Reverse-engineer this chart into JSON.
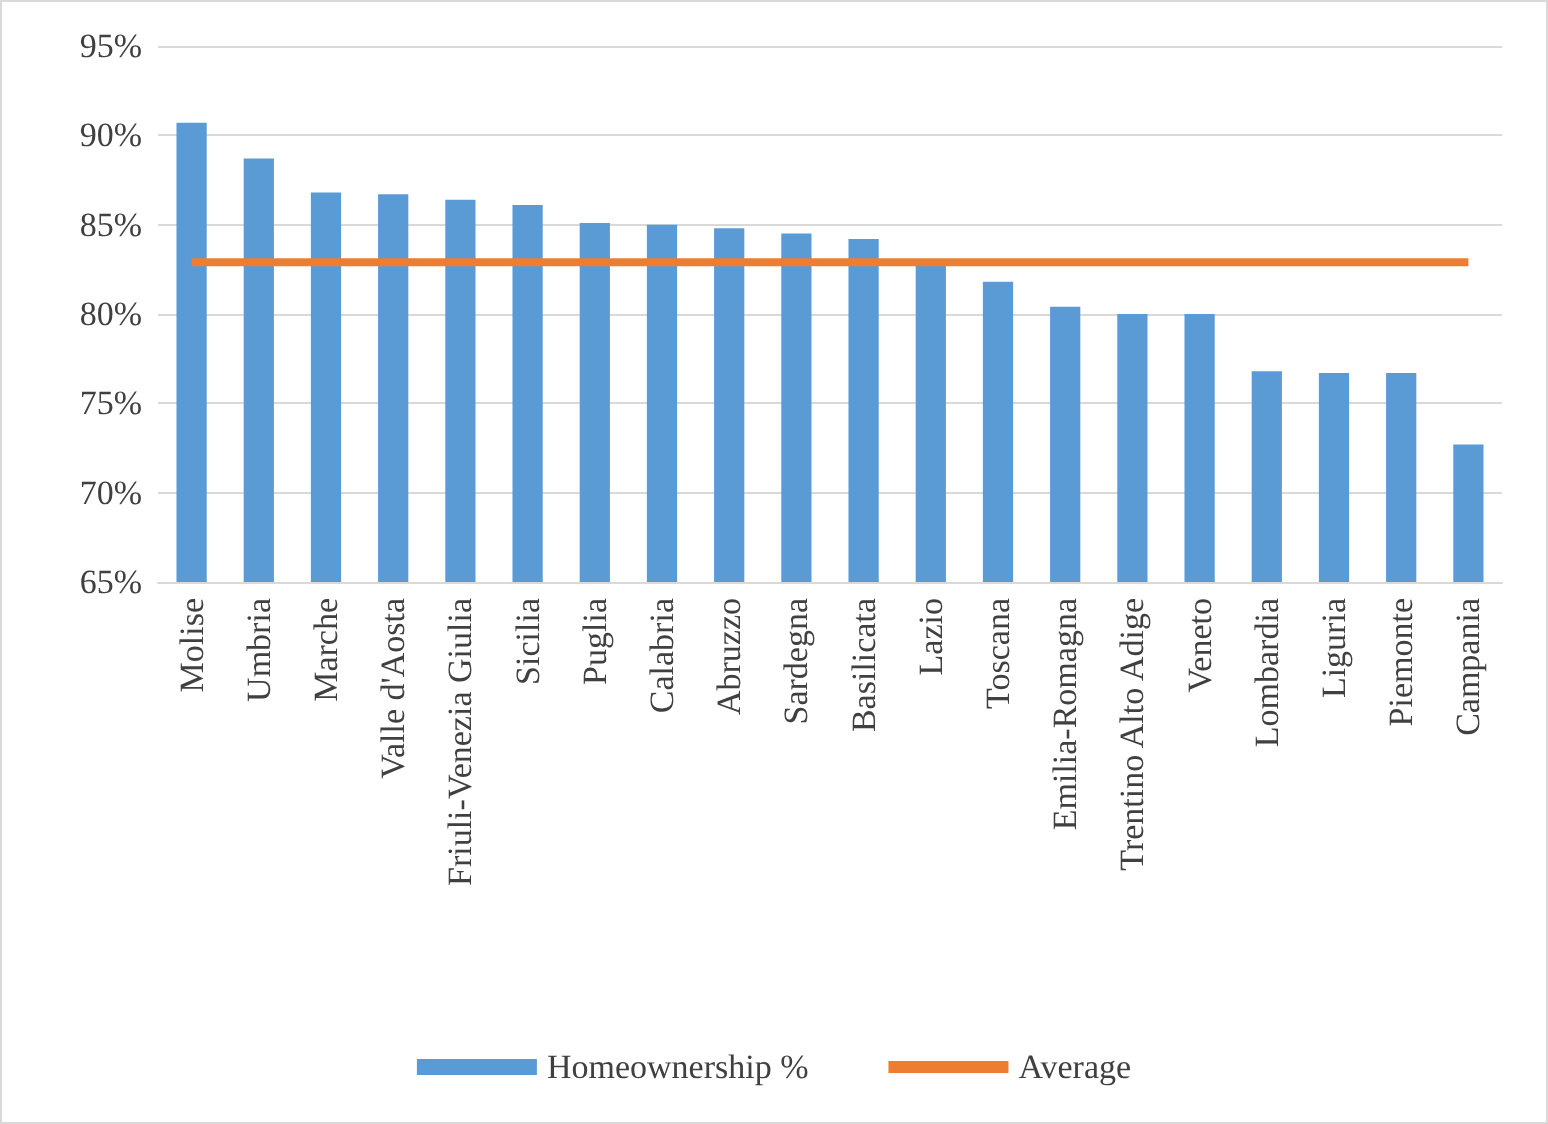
{
  "chart_data": {
    "type": "bar",
    "categories": [
      "Molise",
      "Umbria",
      "Marche",
      "Valle d'Aosta",
      "Friuli-Venezia Giulia",
      "Sicilia",
      "Puglia",
      "Calabria",
      "Abruzzo",
      "Sardegna",
      "Basilicata",
      "Lazio",
      "Toscana",
      "Emilia-Romagna",
      "Trentino Alto Adige",
      "Veneto",
      "Lombardia",
      "Liguria",
      "Piemonte",
      "Campania"
    ],
    "series": [
      {
        "name": "Homeownership %",
        "color": "#5b9bd5",
        "values": [
          90.7,
          88.7,
          86.8,
          86.7,
          86.4,
          86.1,
          85.1,
          85.0,
          84.8,
          84.5,
          84.2,
          82.8,
          81.8,
          80.4,
          80.0,
          80.0,
          76.8,
          76.7,
          76.7,
          72.7
        ]
      },
      {
        "name": "Average",
        "type": "line",
        "color": "#ed7d31",
        "values": [
          82.9,
          82.9,
          82.9,
          82.9,
          82.9,
          82.9,
          82.9,
          82.9,
          82.9,
          82.9,
          82.9,
          82.9,
          82.9,
          82.9,
          82.9,
          82.9,
          82.9,
          82.9,
          82.9,
          82.9
        ]
      }
    ],
    "ylim": [
      65,
      95
    ],
    "yticks": [
      {
        "value": 65,
        "label": "65%"
      },
      {
        "value": 70,
        "label": "70%"
      },
      {
        "value": 75,
        "label": "75%"
      },
      {
        "value": 80,
        "label": "80%"
      },
      {
        "value": 85,
        "label": "85%"
      },
      {
        "value": 90,
        "label": "90%"
      },
      {
        "value": 95,
        "label": "95%"
      }
    ],
    "grid": "y",
    "legend": "bottom",
    "marker": "none"
  }
}
